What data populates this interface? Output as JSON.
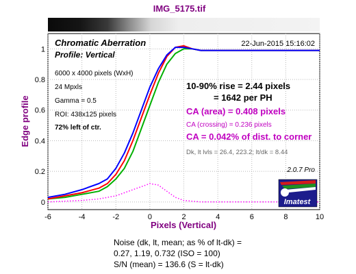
{
  "header": {
    "file_title": "IMG_5175.tif"
  },
  "panel": {
    "title": "Chromatic Aberration",
    "profile": "Profile: Vertical",
    "timestamp": "22-Jun-2015 15:16:02",
    "info": [
      "6000 x 4000 pixels (WxH)",
      "24 Mpxls",
      "Gamma = 0.5",
      "ROI: 438x125 pixels"
    ],
    "position": "72% left of ctr."
  },
  "results": {
    "rise_line1": "10-90% rise = 2.44 pixels",
    "rise_line2": "= 1642 per PH",
    "ca_area": "CA (area) = 0.408 pixels",
    "ca_crossing": "CA (crossing) = 0.236 pixels",
    "ca_corner": "CA = 0.042% of dist. to corner",
    "levels": "Dk, lt lvls = 26.4, 223.2;  lt/dk = 8.44"
  },
  "logo": {
    "version": "2.0.7  Pro",
    "brand": "Imatest"
  },
  "footer": {
    "line1": "Noise (dk, lt, mean; as % of lt-dk) =",
    "line2": "0.27,  1.19,  0.732  (ISO = 100)",
    "line3": "S/N (mean) = 136.6  (S = lt-dk)"
  },
  "colors": {
    "title": "#800080",
    "results_magenta": "#c000c0",
    "red": "#ff0000",
    "green": "#00b000",
    "blue": "#0000ff",
    "diff": "#ff00ff"
  },
  "chart_data": {
    "type": "line",
    "xlabel": "Pixels (Vertical)",
    "ylabel": "Edge profile",
    "xlim": [
      -6,
      10
    ],
    "ylim": [
      -0.05,
      1.1
    ],
    "xticks": [
      -6,
      -4,
      -2,
      0,
      2,
      4,
      6,
      8,
      10
    ],
    "yticks": [
      0,
      0.2,
      0.4,
      0.6,
      0.8,
      1
    ],
    "ytick_labels": [
      "0",
      "0.2",
      "0.4",
      "0.6",
      "0.8",
      "1"
    ],
    "grid": true,
    "series": [
      {
        "color": "#0000ff",
        "style": "solid",
        "x": [
          -6,
          -5,
          -4,
          -3,
          -2.5,
          -2,
          -1.5,
          -1,
          -0.5,
          0,
          0.5,
          1,
          1.5,
          2,
          2.5,
          3,
          4,
          6,
          8,
          10
        ],
        "y": [
          0.03,
          0.05,
          0.08,
          0.12,
          0.15,
          0.22,
          0.32,
          0.45,
          0.6,
          0.75,
          0.87,
          0.96,
          1.01,
          1.01,
          1.0,
          0.99,
          0.99,
          0.99,
          0.99,
          0.99
        ]
      },
      {
        "color": "#ff0000",
        "style": "solid",
        "x": [
          -6,
          -5,
          -4,
          -3,
          -2.5,
          -2,
          -1.5,
          -1,
          -0.5,
          0,
          0.5,
          1,
          1.5,
          2,
          2.5,
          3,
          4,
          6,
          8,
          10
        ],
        "y": [
          0.02,
          0.04,
          0.06,
          0.09,
          0.12,
          0.18,
          0.27,
          0.4,
          0.55,
          0.7,
          0.84,
          0.95,
          1.01,
          1.02,
          1.0,
          0.99,
          0.99,
          0.99,
          0.99,
          0.99
        ]
      },
      {
        "color": "#00b000",
        "style": "solid",
        "x": [
          -6,
          -5,
          -4,
          -3,
          -2.5,
          -2,
          -1.5,
          -1,
          -0.5,
          0,
          0.5,
          1,
          1.5,
          2,
          2.5,
          3,
          4,
          6,
          8,
          10
        ],
        "y": [
          0.02,
          0.03,
          0.05,
          0.07,
          0.1,
          0.15,
          0.22,
          0.33,
          0.48,
          0.63,
          0.78,
          0.9,
          0.97,
          1.0,
          1.0,
          0.99,
          0.99,
          0.99,
          0.99,
          0.99
        ]
      },
      {
        "color": "#ff00ff",
        "style": "dotted",
        "x": [
          -6,
          -4,
          -3,
          -2,
          -1,
          -0.5,
          0,
          0.5,
          1,
          1.5,
          2,
          3,
          4,
          6,
          8,
          10
        ],
        "y": [
          0.0,
          0.01,
          0.02,
          0.04,
          0.08,
          0.1,
          0.12,
          0.11,
          0.07,
          0.03,
          0.01,
          0.0,
          0.0,
          0.0,
          0.0,
          0.0
        ]
      }
    ]
  }
}
